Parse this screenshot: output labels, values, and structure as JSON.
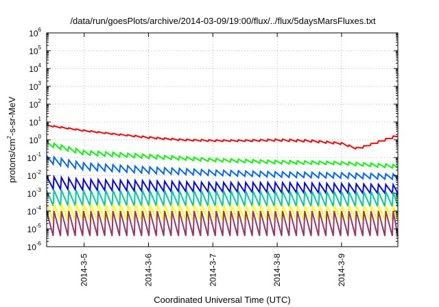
{
  "chart_data": {
    "type": "line",
    "title": "/data/run/goesPlots/archive/2014-03-09/19:00/flux/../flux/5daysMarsFluxes.txt",
    "xlabel": "Coordinated Universal Time (UTC)",
    "ylabel": {
      "base": "protons/cm",
      "superscript": "2",
      "rest": "-s-sr-MeV"
    },
    "yscale": "log",
    "ylim": [
      1e-06,
      1000000.0
    ],
    "y_ticks": [
      {
        "base": "10",
        "exp": "6",
        "value": 1000000.0
      },
      {
        "base": "10",
        "exp": "5",
        "value": 100000.0
      },
      {
        "base": "10",
        "exp": "4",
        "value": 10000.0
      },
      {
        "base": "10",
        "exp": "3",
        "value": 1000.0
      },
      {
        "base": "10",
        "exp": "2",
        "value": 100.0
      },
      {
        "base": "10",
        "exp": "1",
        "value": 10.0
      },
      {
        "base": "10",
        "exp": "0",
        "value": 1.0
      },
      {
        "base": "10",
        "exp": "-1",
        "value": 0.1
      },
      {
        "base": "10",
        "exp": "-2",
        "value": 0.01
      },
      {
        "base": "10",
        "exp": "-3",
        "value": 0.001
      },
      {
        "base": "10",
        "exp": "-4",
        "value": 0.0001
      },
      {
        "base": "10",
        "exp": "-5",
        "value": 1e-05
      },
      {
        "base": "10",
        "exp": "-6",
        "value": 1e-06
      }
    ],
    "xlim": [
      "2014-03-04 10:00",
      "2014-03-09 21:00"
    ],
    "x_ticks": [
      {
        "label": "2014-3-5",
        "value": "2014-03-05 00:00"
      },
      {
        "label": "2014-3-6",
        "value": "2014-03-06 00:00"
      },
      {
        "label": "2014-3-7",
        "value": "2014-03-07 00:00"
      },
      {
        "label": "2014-3-8",
        "value": "2014-03-08 00:00"
      },
      {
        "label": "2014-3-9",
        "value": "2014-03-09 00:00"
      }
    ],
    "grid": true,
    "series": [
      {
        "color": "#ff0000",
        "pattern": "sawtooth",
        "x": [
          "2014-03-04 10:00",
          "2014-03-05 00:00",
          "2014-03-05 12:00",
          "2014-03-06 00:00",
          "2014-03-06 12:00",
          "2014-03-07 00:00",
          "2014-03-07 12:00",
          "2014-03-08 00:00",
          "2014-03-08 12:00",
          "2014-03-09 00:00",
          "2014-03-09 06:00",
          "2014-03-09 12:00",
          "2014-03-09 21:00"
        ],
        "y": [
          7,
          3.5,
          2.2,
          1.5,
          1.1,
          1.0,
          1.0,
          1.1,
          1.0,
          0.7,
          0.35,
          0.7,
          2.0
        ],
        "low": [
          6,
          3,
          1.9,
          1.2,
          0.9,
          0.8,
          0.8,
          0.85,
          0.75,
          0.55,
          0.28,
          0.55,
          1.5
        ]
      },
      {
        "color": "#00ff00",
        "pattern": "sawtooth",
        "x": [
          "2014-03-04 10:00",
          "2014-03-05 00:00",
          "2014-03-06 00:00",
          "2014-03-07 00:00",
          "2014-03-08 00:00",
          "2014-03-09 00:00",
          "2014-03-09 21:00"
        ],
        "y": [
          0.8,
          0.25,
          0.15,
          0.09,
          0.07,
          0.06,
          0.04
        ],
        "low": [
          0.45,
          0.14,
          0.09,
          0.06,
          0.045,
          0.04,
          0.025
        ]
      },
      {
        "color": "#0066ff",
        "pattern": "sawtooth",
        "x": [
          "2014-03-04 10:00",
          "2014-03-05 00:00",
          "2014-03-06 00:00",
          "2014-03-07 00:00",
          "2014-03-08 00:00",
          "2014-03-09 00:00",
          "2014-03-09 21:00"
        ],
        "y": [
          0.13,
          0.05,
          0.03,
          0.02,
          0.016,
          0.014,
          0.012
        ],
        "low": [
          0.05,
          0.02,
          0.013,
          0.01,
          0.008,
          0.007,
          0.006
        ]
      },
      {
        "color": "#0000ff",
        "pattern": "sawtooth",
        "x": [
          "2014-03-04 10:00",
          "2014-03-05 00:00",
          "2014-03-06 00:00",
          "2014-03-07 00:00",
          "2014-03-08 00:00",
          "2014-03-09 00:00",
          "2014-03-09 21:00"
        ],
        "y": [
          0.009,
          0.006,
          0.005,
          0.004,
          0.004,
          0.0035,
          0.003
        ],
        "low": [
          0.0018,
          0.0015,
          0.0013,
          0.0012,
          0.0011,
          0.001,
          0.001
        ]
      },
      {
        "color": "#00cc99",
        "pattern": "sawtooth",
        "x": [
          "2014-03-04 10:00",
          "2014-03-09 21:00"
        ],
        "y": [
          0.0015,
          0.0012
        ],
        "low": [
          0.0002,
          0.00018
        ]
      },
      {
        "color": "#ffff00",
        "pattern": "sawtooth",
        "x": [
          "2014-03-04 10:00",
          "2014-03-09 21:00"
        ],
        "y": [
          0.00025,
          0.0002
        ],
        "low": [
          3e-05,
          3e-05
        ]
      },
      {
        "color": "#993366",
        "pattern": "sawtooth",
        "x": [
          "2014-03-04 10:00",
          "2014-03-09 21:00"
        ],
        "y": [
          0.0001,
          0.0001
        ],
        "low": [
          4e-06,
          4e-06
        ]
      }
    ]
  }
}
